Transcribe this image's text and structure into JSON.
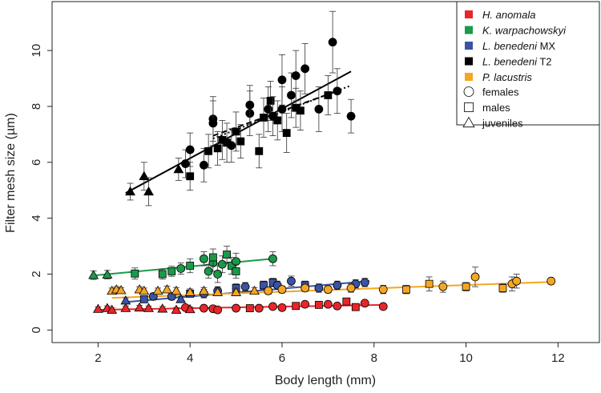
{
  "chart_data": {
    "type": "scatter",
    "title": "",
    "xlabel": "Body length (mm)",
    "ylabel": "Filter mesh size (µm)",
    "xlim": [
      1.0,
      12.9
    ],
    "ylim": [
      -0.45,
      11.75
    ],
    "xticks": [
      2,
      4,
      6,
      8,
      10,
      12
    ],
    "yticks": [
      0,
      2,
      4,
      6,
      8,
      10
    ],
    "grid": false,
    "legend_position": "top-right",
    "series": [
      {
        "name": "H. anomala",
        "name_italic": "H. anomala",
        "name_suffix": "",
        "color": "#e8262a",
        "points": [
          {
            "x": 2.0,
            "y": 0.75,
            "s": "t",
            "e": 0.08
          },
          {
            "x": 2.2,
            "y": 0.78,
            "s": "t",
            "e": 0.08
          },
          {
            "x": 2.3,
            "y": 0.72,
            "s": "t",
            "e": 0.08
          },
          {
            "x": 2.6,
            "y": 0.78,
            "s": "t",
            "e": 0.08
          },
          {
            "x": 2.9,
            "y": 0.8,
            "s": "t",
            "e": 0.08
          },
          {
            "x": 3.1,
            "y": 0.78,
            "s": "t",
            "e": 0.08
          },
          {
            "x": 3.4,
            "y": 0.76,
            "s": "t",
            "e": 0.08
          },
          {
            "x": 3.7,
            "y": 0.72,
            "s": "t",
            "e": 0.08
          },
          {
            "x": 3.9,
            "y": 0.8,
            "s": "c",
            "e": 0.08
          },
          {
            "x": 4.0,
            "y": 0.74,
            "s": "t",
            "e": 0.08
          },
          {
            "x": 4.3,
            "y": 0.78,
            "s": "c",
            "e": 0.08
          },
          {
            "x": 4.5,
            "y": 0.76,
            "s": "c",
            "e": 0.1
          },
          {
            "x": 4.6,
            "y": 0.72,
            "s": "c",
            "e": 0.08
          },
          {
            "x": 5.0,
            "y": 0.78,
            "s": "c",
            "e": 0.08
          },
          {
            "x": 5.3,
            "y": 0.78,
            "s": "s",
            "e": 0.08
          },
          {
            "x": 5.5,
            "y": 0.78,
            "s": "c",
            "e": 0.08
          },
          {
            "x": 5.8,
            "y": 0.84,
            "s": "c",
            "e": 0.08
          },
          {
            "x": 6.0,
            "y": 0.8,
            "s": "c",
            "e": 0.08
          },
          {
            "x": 6.3,
            "y": 0.86,
            "s": "s",
            "e": 0.08
          },
          {
            "x": 6.5,
            "y": 0.92,
            "s": "c",
            "e": 0.08
          },
          {
            "x": 6.8,
            "y": 0.9,
            "s": "s",
            "e": 0.08
          },
          {
            "x": 7.0,
            "y": 0.92,
            "s": "c",
            "e": 0.08
          },
          {
            "x": 7.2,
            "y": 0.86,
            "s": "c",
            "e": 0.08
          },
          {
            "x": 7.4,
            "y": 1.02,
            "s": "s",
            "e": 0.08
          },
          {
            "x": 7.6,
            "y": 0.82,
            "s": "s",
            "e": 0.08
          },
          {
            "x": 7.8,
            "y": 0.96,
            "s": "c",
            "e": 0.08
          },
          {
            "x": 8.2,
            "y": 0.84,
            "s": "c",
            "e": 0.08
          }
        ],
        "fit": [
          [
            1.95,
            0.72
          ],
          [
            8.2,
            0.9
          ]
        ]
      },
      {
        "name": "K. warpachowskyi",
        "name_italic": "K. warpachowskyi",
        "name_suffix": "",
        "color": "#1a9a4a",
        "points": [
          {
            "x": 1.9,
            "y": 1.96,
            "s": "t",
            "e": 0.15
          },
          {
            "x": 2.2,
            "y": 1.98,
            "s": "t",
            "e": 0.15
          },
          {
            "x": 2.8,
            "y": 2.02,
            "s": "s",
            "e": 0.2
          },
          {
            "x": 3.4,
            "y": 2.0,
            "s": "s",
            "e": 0.18
          },
          {
            "x": 3.6,
            "y": 2.1,
            "s": "s",
            "e": 0.18
          },
          {
            "x": 3.8,
            "y": 2.2,
            "s": "c",
            "e": 0.2
          },
          {
            "x": 4.0,
            "y": 2.3,
            "s": "s",
            "e": 0.25
          },
          {
            "x": 4.3,
            "y": 2.55,
            "s": "c",
            "e": 0.25
          },
          {
            "x": 4.4,
            "y": 2.1,
            "s": "c",
            "e": 0.25
          },
          {
            "x": 4.5,
            "y": 2.4,
            "s": "c",
            "e": 0.3
          },
          {
            "x": 4.5,
            "y": 2.6,
            "s": "s",
            "e": 0.3
          },
          {
            "x": 4.6,
            "y": 2.0,
            "s": "c",
            "e": 0.3
          },
          {
            "x": 4.7,
            "y": 2.35,
            "s": "c",
            "e": 0.3
          },
          {
            "x": 4.8,
            "y": 2.7,
            "s": "s",
            "e": 0.3
          },
          {
            "x": 4.9,
            "y": 2.3,
            "s": "s",
            "e": 0.3
          },
          {
            "x": 5.0,
            "y": 2.45,
            "s": "c",
            "e": 0.3
          },
          {
            "x": 5.0,
            "y": 2.1,
            "s": "s",
            "e": 0.25
          },
          {
            "x": 5.8,
            "y": 2.55,
            "s": "c",
            "e": 0.25
          }
        ],
        "fit": [
          [
            1.9,
            1.95
          ],
          [
            5.8,
            2.55
          ]
        ]
      },
      {
        "name": "L. benedeni MX",
        "name_italic": "L. benedeni",
        "name_suffix": " MX",
        "color": "#3a53a4",
        "points": [
          {
            "x": 2.6,
            "y": 1.05,
            "s": "t",
            "e": 0.1
          },
          {
            "x": 3.0,
            "y": 1.1,
            "s": "s",
            "e": 0.1
          },
          {
            "x": 3.2,
            "y": 1.2,
            "s": "c",
            "e": 0.12
          },
          {
            "x": 3.6,
            "y": 1.2,
            "s": "c",
            "e": 0.12
          },
          {
            "x": 3.8,
            "y": 1.1,
            "s": "t",
            "e": 0.1
          },
          {
            "x": 4.0,
            "y": 1.3,
            "s": "s",
            "e": 0.12
          },
          {
            "x": 4.3,
            "y": 1.3,
            "s": "c",
            "e": 0.15
          },
          {
            "x": 4.6,
            "y": 1.4,
            "s": "c",
            "e": 0.15
          },
          {
            "x": 5.0,
            "y": 1.5,
            "s": "s",
            "e": 0.15
          },
          {
            "x": 5.2,
            "y": 1.55,
            "s": "c",
            "e": 0.15
          },
          {
            "x": 5.6,
            "y": 1.6,
            "s": "s",
            "e": 0.15
          },
          {
            "x": 5.8,
            "y": 1.7,
            "s": "s",
            "e": 0.15
          },
          {
            "x": 5.9,
            "y": 1.6,
            "s": "c",
            "e": 0.15
          },
          {
            "x": 6.2,
            "y": 1.75,
            "s": "c",
            "e": 0.18
          },
          {
            "x": 6.5,
            "y": 1.6,
            "s": "s",
            "e": 0.15
          },
          {
            "x": 6.8,
            "y": 1.5,
            "s": "c",
            "e": 0.15
          },
          {
            "x": 7.2,
            "y": 1.6,
            "s": "c",
            "e": 0.15
          },
          {
            "x": 7.6,
            "y": 1.65,
            "s": "c",
            "e": 0.15
          },
          {
            "x": 7.8,
            "y": 1.7,
            "s": "c",
            "e": 0.15
          }
        ],
        "fit": [
          [
            2.6,
            1.0
          ],
          [
            7.9,
            1.75
          ]
        ]
      },
      {
        "name": "L. benedeni T2",
        "name_italic": "L. benedeni",
        "name_suffix": " T2",
        "color": "#000000",
        "points": [
          {
            "x": 2.7,
            "y": 4.95,
            "s": "t",
            "e": 0.3
          },
          {
            "x": 3.0,
            "y": 5.5,
            "s": "t",
            "e": 0.5
          },
          {
            "x": 3.1,
            "y": 4.95,
            "s": "t",
            "e": 0.5
          },
          {
            "x": 3.75,
            "y": 5.75,
            "s": "t",
            "e": 0.4
          },
          {
            "x": 3.9,
            "y": 5.95,
            "s": "c",
            "e": 0.5
          },
          {
            "x": 4.0,
            "y": 6.45,
            "s": "c",
            "e": 0.6
          },
          {
            "x": 4.0,
            "y": 5.5,
            "s": "s",
            "e": 0.5
          },
          {
            "x": 4.3,
            "y": 5.9,
            "s": "c",
            "e": 0.6
          },
          {
            "x": 4.4,
            "y": 6.4,
            "s": "s",
            "e": 0.6
          },
          {
            "x": 4.5,
            "y": 7.55,
            "s": "c",
            "e": 0.8
          },
          {
            "x": 4.5,
            "y": 7.4,
            "s": "c",
            "e": 0.8
          },
          {
            "x": 4.6,
            "y": 6.5,
            "s": "s",
            "e": 0.6
          },
          {
            "x": 4.7,
            "y": 6.8,
            "s": "s",
            "e": 0.7
          },
          {
            "x": 4.8,
            "y": 6.7,
            "s": "s",
            "e": 0.7
          },
          {
            "x": 4.9,
            "y": 6.6,
            "s": "c",
            "e": 0.6
          },
          {
            "x": 5.0,
            "y": 7.1,
            "s": "s",
            "e": 0.7
          },
          {
            "x": 5.1,
            "y": 6.75,
            "s": "s",
            "e": 0.6
          },
          {
            "x": 5.3,
            "y": 7.75,
            "s": "c",
            "e": 0.8
          },
          {
            "x": 5.3,
            "y": 8.05,
            "s": "c",
            "e": 0.7
          },
          {
            "x": 5.5,
            "y": 6.4,
            "s": "s",
            "e": 0.6
          },
          {
            "x": 5.6,
            "y": 7.6,
            "s": "s",
            "e": 0.7
          },
          {
            "x": 5.7,
            "y": 7.9,
            "s": "c",
            "e": 0.8
          },
          {
            "x": 5.75,
            "y": 8.2,
            "s": "s",
            "e": 0.7
          },
          {
            "x": 5.8,
            "y": 7.65,
            "s": "c",
            "e": 0.7
          },
          {
            "x": 5.9,
            "y": 7.5,
            "s": "s",
            "e": 0.7
          },
          {
            "x": 6.0,
            "y": 7.9,
            "s": "c",
            "e": 0.8
          },
          {
            "x": 6.0,
            "y": 8.95,
            "s": "c",
            "e": 0.9
          },
          {
            "x": 6.1,
            "y": 7.05,
            "s": "s",
            "e": 0.7
          },
          {
            "x": 6.2,
            "y": 8.4,
            "s": "c",
            "e": 0.8
          },
          {
            "x": 6.3,
            "y": 7.95,
            "s": "s",
            "e": 0.7
          },
          {
            "x": 6.3,
            "y": 9.1,
            "s": "c",
            "e": 0.9
          },
          {
            "x": 6.4,
            "y": 7.85,
            "s": "s",
            "e": 0.7
          },
          {
            "x": 6.5,
            "y": 9.35,
            "s": "c",
            "e": 0.9
          },
          {
            "x": 6.8,
            "y": 7.9,
            "s": "c",
            "e": 0.8
          },
          {
            "x": 7.0,
            "y": 8.4,
            "s": "s",
            "e": 0.7
          },
          {
            "x": 7.1,
            "y": 10.3,
            "s": "c",
            "e": 1.1
          },
          {
            "x": 7.2,
            "y": 8.55,
            "s": "c",
            "e": 0.8
          },
          {
            "x": 7.5,
            "y": 7.65,
            "s": "c",
            "e": 0.6
          }
        ],
        "fit": [
          [
            2.6,
            4.9
          ],
          [
            7.5,
            9.25
          ]
        ],
        "fit_dashed": [
          [
            4.5,
            6.95
          ],
          [
            7.2,
            8.55
          ]
        ],
        "fit_dotted": [
          [
            4.5,
            6.85
          ],
          [
            7.5,
            8.75
          ]
        ]
      },
      {
        "name": "P. lacustris",
        "name_italic": "P. lacustris",
        "name_suffix": "",
        "color": "#f5a623",
        "points": [
          {
            "x": 2.3,
            "y": 1.4,
            "s": "t",
            "e": 0.1
          },
          {
            "x": 2.4,
            "y": 1.45,
            "s": "t",
            "e": 0.1
          },
          {
            "x": 2.5,
            "y": 1.42,
            "s": "t",
            "e": 0.1
          },
          {
            "x": 2.9,
            "y": 1.45,
            "s": "t",
            "e": 0.1
          },
          {
            "x": 3.0,
            "y": 1.4,
            "s": "t",
            "e": 0.1
          },
          {
            "x": 3.3,
            "y": 1.4,
            "s": "t",
            "e": 0.1
          },
          {
            "x": 3.5,
            "y": 1.45,
            "s": "t",
            "e": 0.12
          },
          {
            "x": 3.7,
            "y": 1.4,
            "s": "t",
            "e": 0.12
          },
          {
            "x": 4.0,
            "y": 1.35,
            "s": "t",
            "e": 0.12
          },
          {
            "x": 4.3,
            "y": 1.4,
            "s": "t",
            "e": 0.12
          },
          {
            "x": 4.6,
            "y": 1.35,
            "s": "t",
            "e": 0.12
          },
          {
            "x": 5.0,
            "y": 1.35,
            "s": "t",
            "e": 0.12
          },
          {
            "x": 5.4,
            "y": 1.4,
            "s": "t",
            "e": 0.12
          },
          {
            "x": 5.7,
            "y": 1.4,
            "s": "c",
            "e": 0.12
          },
          {
            "x": 6.0,
            "y": 1.45,
            "s": "c",
            "e": 0.12
          },
          {
            "x": 6.5,
            "y": 1.5,
            "s": "c",
            "e": 0.12
          },
          {
            "x": 7.0,
            "y": 1.45,
            "s": "c",
            "e": 0.12
          },
          {
            "x": 7.5,
            "y": 1.5,
            "s": "c",
            "e": 0.15
          },
          {
            "x": 8.2,
            "y": 1.45,
            "s": "c",
            "e": 0.15
          },
          {
            "x": 8.7,
            "y": 1.45,
            "s": "s",
            "e": 0.15
          },
          {
            "x": 9.2,
            "y": 1.65,
            "s": "s",
            "e": 0.25
          },
          {
            "x": 9.5,
            "y": 1.55,
            "s": "c",
            "e": 0.2
          },
          {
            "x": 10.0,
            "y": 1.55,
            "s": "s",
            "e": 0.15
          },
          {
            "x": 10.2,
            "y": 1.9,
            "s": "c",
            "e": 0.35
          },
          {
            "x": 10.8,
            "y": 1.5,
            "s": "s",
            "e": 0.15
          },
          {
            "x": 11.0,
            "y": 1.65,
            "s": "c",
            "e": 0.25
          },
          {
            "x": 11.1,
            "y": 1.75,
            "s": "c",
            "e": 0.25
          },
          {
            "x": 11.85,
            "y": 1.75,
            "s": "c",
            "e": 0.1
          }
        ],
        "fit": [
          [
            2.3,
            1.15
          ],
          [
            11.85,
            1.72
          ]
        ]
      }
    ],
    "legend": {
      "shape_entries": [
        {
          "shape": "c",
          "label": "females"
        },
        {
          "shape": "s",
          "label": "males"
        },
        {
          "shape": "t",
          "label": "juveniles"
        }
      ]
    }
  }
}
